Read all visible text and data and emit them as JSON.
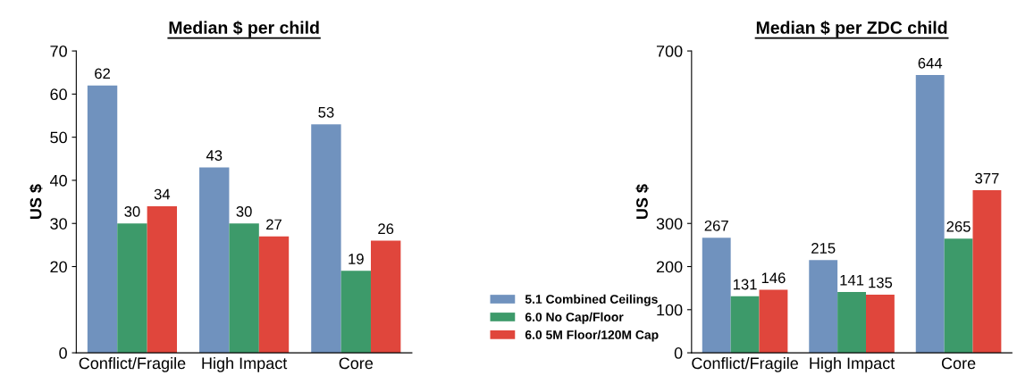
{
  "chart_data": [
    {
      "type": "bar",
      "title": "Median $ per child",
      "ylabel": "US $",
      "categories": [
        "Conflict/Fragile",
        "High Impact",
        "Core"
      ],
      "series": [
        {
          "name": "5.1 Combined Ceilings",
          "color": "#7092be",
          "values": [
            62,
            43,
            53
          ]
        },
        {
          "name": "6.0 No Cap/Floor",
          "color": "#3d9a6a",
          "values": [
            30,
            30,
            19
          ]
        },
        {
          "name": "6.0 5M Floor/120M Cap",
          "color": "#e0463c",
          "values": [
            34,
            27,
            26
          ]
        }
      ],
      "ylim": [
        0,
        70
      ],
      "yticks": [
        0,
        20,
        30,
        40,
        50,
        60,
        70
      ],
      "data_labels": true,
      "grid": false,
      "legend": "right"
    },
    {
      "type": "bar",
      "title": "Median $ per ZDC child",
      "ylabel": "US $",
      "categories": [
        "Conflict/Fragile",
        "High Impact",
        "Core"
      ],
      "series": [
        {
          "color": "#7092be",
          "values": [
            267,
            215,
            644
          ]
        },
        {
          "color": "#3d9a6a",
          "values": [
            131,
            141,
            265
          ]
        },
        {
          "color": "#e0463c",
          "values": [
            146,
            135,
            377
          ]
        }
      ],
      "ylim": [
        0,
        700
      ],
      "yticks": [
        0,
        100,
        200,
        300,
        700
      ],
      "data_labels": true,
      "grid": false
    }
  ]
}
